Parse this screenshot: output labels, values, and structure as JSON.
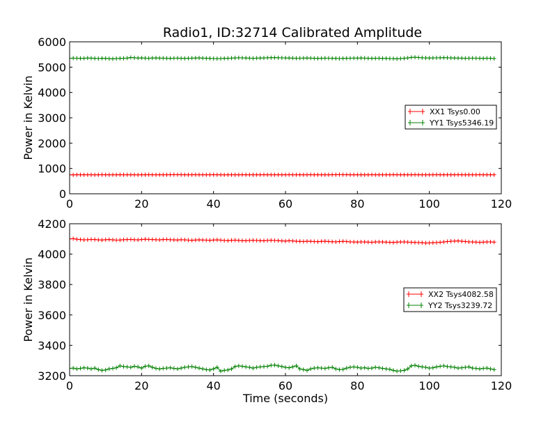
{
  "chart_data": [
    {
      "type": "line",
      "title": "Radio1, ID:32714 Calibrated Amplitude",
      "xlabel": "",
      "ylabel": "Power in Kelvin",
      "xlim": [
        0,
        120
      ],
      "ylim": [
        0,
        6000
      ],
      "xticks": [
        0,
        20,
        40,
        60,
        80,
        100,
        120
      ],
      "yticks": [
        0,
        1000,
        2000,
        3000,
        4000,
        5000,
        6000
      ],
      "grid": false,
      "legend_position": "center-right",
      "marker": "+",
      "x_range": [
        0,
        118
      ],
      "series": [
        {
          "name": "XX1 Tsys0.00",
          "color": "#ff0000",
          "values": [
            750,
            748,
            752,
            750,
            749,
            751,
            750,
            748,
            750,
            752,
            751,
            749,
            750,
            750,
            752,
            750,
            749,
            751,
            750,
            748,
            750,
            751,
            752,
            750,
            749,
            750,
            751,
            750,
            755,
            758,
            754,
            752,
            750,
            749,
            750,
            752,
            751,
            750,
            749,
            750,
            752,
            751,
            750,
            748,
            750,
            751,
            749,
            750,
            752,
            750,
            751,
            750,
            749,
            750,
            752,
            751,
            750,
            749,
            750,
            751,
            750,
            752,
            751,
            750,
            749,
            750,
            751,
            752,
            750,
            749,
            750,
            751,
            750,
            752,
            755,
            757,
            754,
            752,
            750,
            751,
            750,
            749,
            750,
            751,
            752,
            750,
            749,
            750,
            751,
            750,
            752,
            751,
            750,
            749,
            750,
            751,
            752,
            750,
            749,
            750,
            751,
            750,
            752,
            751,
            750,
            749,
            750,
            751,
            752,
            750,
            749,
            750,
            751,
            750,
            752,
            751,
            750,
            749,
            750
          ]
        },
        {
          "name": "YY1 Tsys5346.19",
          "color": "#008000",
          "values": [
            5350,
            5355,
            5352,
            5348,
            5350,
            5360,
            5355,
            5345,
            5340,
            5350,
            5345,
            5335,
            5330,
            5340,
            5345,
            5350,
            5355,
            5380,
            5370,
            5360,
            5365,
            5355,
            5350,
            5360,
            5362,
            5358,
            5355,
            5350,
            5348,
            5352,
            5355,
            5350,
            5345,
            5350,
            5355,
            5360,
            5362,
            5358,
            5350,
            5345,
            5340,
            5335,
            5340,
            5345,
            5350,
            5355,
            5365,
            5370,
            5368,
            5360,
            5355,
            5350,
            5355,
            5360,
            5365,
            5370,
            5375,
            5378,
            5372,
            5368,
            5365,
            5360,
            5355,
            5350,
            5352,
            5358,
            5360,
            5355,
            5350,
            5348,
            5350,
            5355,
            5352,
            5350,
            5345,
            5340,
            5345,
            5350,
            5352,
            5355,
            5358,
            5360,
            5355,
            5350,
            5345,
            5350,
            5352,
            5348,
            5345,
            5340,
            5335,
            5330,
            5340,
            5350,
            5365,
            5385,
            5390,
            5380,
            5370,
            5365,
            5360,
            5362,
            5368,
            5372,
            5375,
            5370,
            5365,
            5360,
            5358,
            5355,
            5350,
            5352,
            5355,
            5352,
            5350,
            5348,
            5352,
            5350,
            5340
          ]
        }
      ]
    },
    {
      "type": "line",
      "title": "",
      "xlabel": "Time (seconds)",
      "ylabel": "Power in Kelvin",
      "xlim": [
        0,
        120
      ],
      "ylim": [
        3200,
        4200
      ],
      "xticks": [
        0,
        20,
        40,
        60,
        80,
        100,
        120
      ],
      "yticks": [
        3200,
        3400,
        3600,
        3800,
        4000,
        4200
      ],
      "grid": false,
      "legend_position": "center-right",
      "marker": "+",
      "x_range": [
        0,
        118
      ],
      "series": [
        {
          "name": "XX2 Tsys4082.58",
          "color": "#ff0000",
          "values": [
            4100,
            4102,
            4098,
            4096,
            4094,
            4095,
            4097,
            4096,
            4094,
            4093,
            4095,
            4096,
            4094,
            4092,
            4093,
            4095,
            4096,
            4097,
            4095,
            4094,
            4096,
            4098,
            4097,
            4096,
            4095,
            4094,
            4096,
            4097,
            4095,
            4094,
            4093,
            4095,
            4094,
            4092,
            4091,
            4093,
            4094,
            4093,
            4092,
            4091,
            4093,
            4094,
            4092,
            4090,
            4089,
            4091,
            4092,
            4090,
            4089,
            4088,
            4090,
            4091,
            4090,
            4089,
            4088,
            4090,
            4091,
            4090,
            4089,
            4087,
            4086,
            4088,
            4087,
            4085,
            4084,
            4083,
            4085,
            4084,
            4083,
            4082,
            4084,
            4085,
            4083,
            4082,
            4081,
            4083,
            4084,
            4083,
            4081,
            4080,
            4079,
            4081,
            4080,
            4079,
            4078,
            4080,
            4081,
            4080,
            4079,
            4078,
            4077,
            4079,
            4080,
            4081,
            4079,
            4078,
            4077,
            4076,
            4075,
            4073,
            4074,
            4075,
            4076,
            4078,
            4080,
            4083,
            4085,
            4086,
            4087,
            4085,
            4083,
            4081,
            4080,
            4079,
            4078,
            4079,
            4080,
            4081,
            4079
          ]
        },
        {
          "name": "YY2 Tsys3239.72",
          "color": "#008000",
          "values": [
            3248,
            3250,
            3245,
            3248,
            3252,
            3250,
            3245,
            3250,
            3240,
            3235,
            3238,
            3245,
            3248,
            3252,
            3265,
            3260,
            3258,
            3255,
            3262,
            3258,
            3250,
            3262,
            3265,
            3255,
            3248,
            3245,
            3248,
            3250,
            3252,
            3248,
            3245,
            3250,
            3255,
            3258,
            3260,
            3255,
            3250,
            3245,
            3240,
            3238,
            3245,
            3255,
            3230,
            3235,
            3238,
            3245,
            3260,
            3265,
            3262,
            3258,
            3255,
            3250,
            3255,
            3258,
            3260,
            3262,
            3268,
            3270,
            3265,
            3260,
            3255,
            3252,
            3258,
            3265,
            3245,
            3240,
            3235,
            3245,
            3250,
            3252,
            3250,
            3248,
            3252,
            3255,
            3245,
            3240,
            3242,
            3250,
            3255,
            3258,
            3255,
            3250,
            3252,
            3248,
            3250,
            3255,
            3252,
            3248,
            3245,
            3242,
            3235,
            3230,
            3232,
            3235,
            3245,
            3265,
            3268,
            3262,
            3258,
            3255,
            3250,
            3252,
            3258,
            3262,
            3265,
            3260,
            3258,
            3255,
            3250,
            3252,
            3255,
            3258,
            3250,
            3248,
            3245,
            3248,
            3250,
            3245,
            3240
          ]
        }
      ]
    }
  ]
}
